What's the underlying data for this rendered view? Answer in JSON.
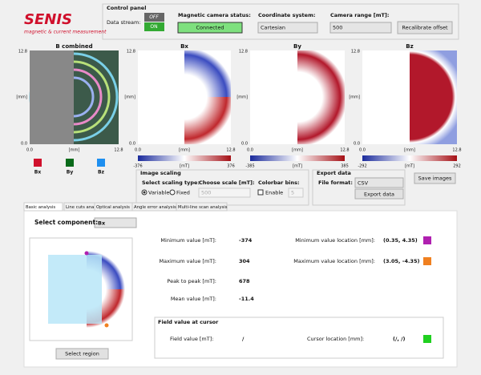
{
  "logo": {
    "name": "SENIS",
    "tagline": "magnetic & current measurement"
  },
  "control_panel": {
    "title": "Control panel",
    "data_stream_label": "Data stream:",
    "toggle_off": "OFF",
    "toggle_on": "ON",
    "status_label": "Magnetic camera status:",
    "status": "Connected",
    "coordinate_label": "Coordinate system:",
    "coordinate": "Cartesian",
    "range_label": "Camera range [mT]:",
    "range": "500",
    "recalibrate": "Recalibrate offset"
  },
  "plots": [
    {
      "title": "B combined",
      "y_labels": [
        "12.8",
        "[mm]",
        "0.0"
      ],
      "x_labels": [
        "0.0",
        "[mm]",
        "12.8"
      ]
    },
    {
      "title": "Bx",
      "y_labels": [
        "12.8",
        "[mm]",
        "0.0"
      ],
      "x_labels": [
        "0.0",
        "[mm]",
        "12.8"
      ],
      "colorbar": [
        "-376",
        "[mT]",
        "376"
      ]
    },
    {
      "title": "By",
      "y_labels": [
        "12.8",
        "[mm]",
        "0.0"
      ],
      "x_labels": [
        "0.0",
        "[mm]",
        "12.8"
      ],
      "colorbar": [
        "-385",
        "[mT]",
        "385"
      ]
    },
    {
      "title": "Bz",
      "y_labels": [
        "12.8",
        "[mm]",
        "0.0"
      ],
      "x_labels": [
        "0.0",
        "[mm]",
        "12.8"
      ],
      "colorbar": [
        "-292",
        "[mT]",
        "292"
      ]
    }
  ],
  "legend": [
    "Bx",
    "By",
    "Bz"
  ],
  "image_scaling": {
    "title": "Image scaling",
    "type_label": "Select scaling type:",
    "options": [
      "Variable",
      "Fixed"
    ],
    "scale_label": "Choose scale [mT]:",
    "scale": "500",
    "bins_label": "Colorbar bins:",
    "enable": "Enable",
    "bins": "5"
  },
  "export": {
    "title": "Export data",
    "format_label": "File format:",
    "format": "CSV",
    "button": "Export data"
  },
  "save_images": "Save images",
  "tabs": [
    "Basic analysis",
    "Line cuts analysis",
    "Optical analysis",
    "Angle error analysis",
    "Multi-line scan analysis"
  ],
  "analysis": {
    "component_label": "Select component:",
    "component": "Bx",
    "select_region": "Select region",
    "stats": [
      [
        "Minimum value [mT]:",
        "-374"
      ],
      [
        "Maximum value [mT]:",
        "304"
      ],
      [
        "Peak to peak [mT]:",
        "678"
      ],
      [
        "Mean value [mT]:",
        "-11.4"
      ]
    ],
    "locations": [
      [
        "Minimum value location [mm]:",
        "(0.35, 4.35)"
      ],
      [
        "Maximum value location [mm]:",
        "(3.05, -4.35)"
      ]
    ],
    "cursor": {
      "title": "Field value at cursor",
      "field_label": "Field value [mT]:",
      "field": "/",
      "location_label": "Cursor location [mm]:",
      "location": "(/, /)"
    }
  }
}
